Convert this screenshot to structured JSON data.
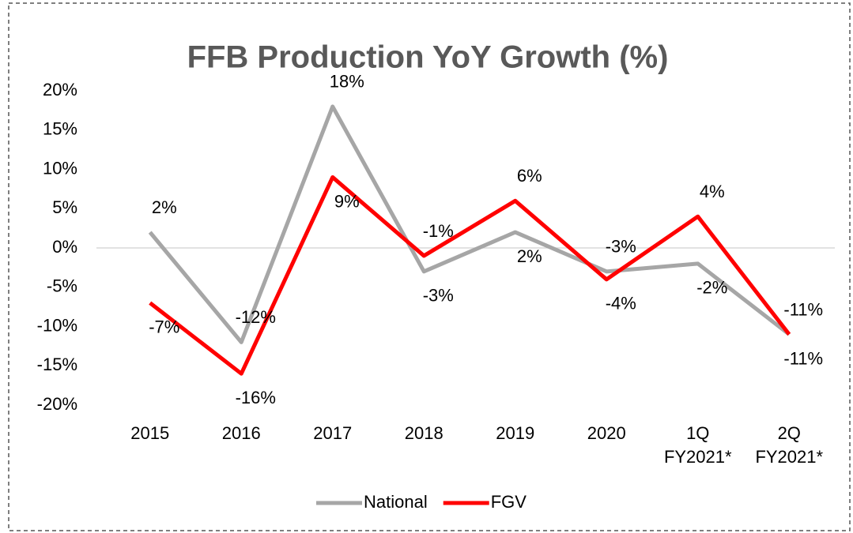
{
  "chart_data": {
    "type": "line",
    "title": "FFB Production YoY Growth (%)",
    "categories": [
      "2015",
      "2016",
      "2017",
      "2018",
      "2019",
      "2020",
      "1Q FY2021*",
      "2Q FY2021*"
    ],
    "series": [
      {
        "name": "National",
        "color": "#a6a6a6",
        "values": [
          2,
          -12,
          18,
          -3,
          2,
          -3,
          -2,
          -11
        ],
        "value_labels": [
          "2%",
          "-12%",
          "18%",
          "-3%",
          "2%",
          "-3%",
          "-2%",
          "-11%"
        ]
      },
      {
        "name": "FGV",
        "color": "#ff0000",
        "values": [
          -7,
          -16,
          9,
          -1,
          6,
          -4,
          4,
          -11
        ],
        "value_labels": [
          "-7%",
          "-16%",
          "9%",
          "-1%",
          "6%",
          "-4%",
          "4%",
          "-11%"
        ]
      }
    ],
    "ylim": [
      -20,
      20
    ],
    "yticks": [
      {
        "value": -20,
        "label": "-20%"
      },
      {
        "value": -15,
        "label": "-15%"
      },
      {
        "value": -10,
        "label": "-10%"
      },
      {
        "value": -5,
        "label": "-5%"
      },
      {
        "value": 0,
        "label": "0%"
      },
      {
        "value": 5,
        "label": "5%"
      },
      {
        "value": 10,
        "label": "10%"
      },
      {
        "value": 15,
        "label": "15%"
      },
      {
        "value": 20,
        "label": "20%"
      }
    ],
    "legend": "bottom"
  }
}
